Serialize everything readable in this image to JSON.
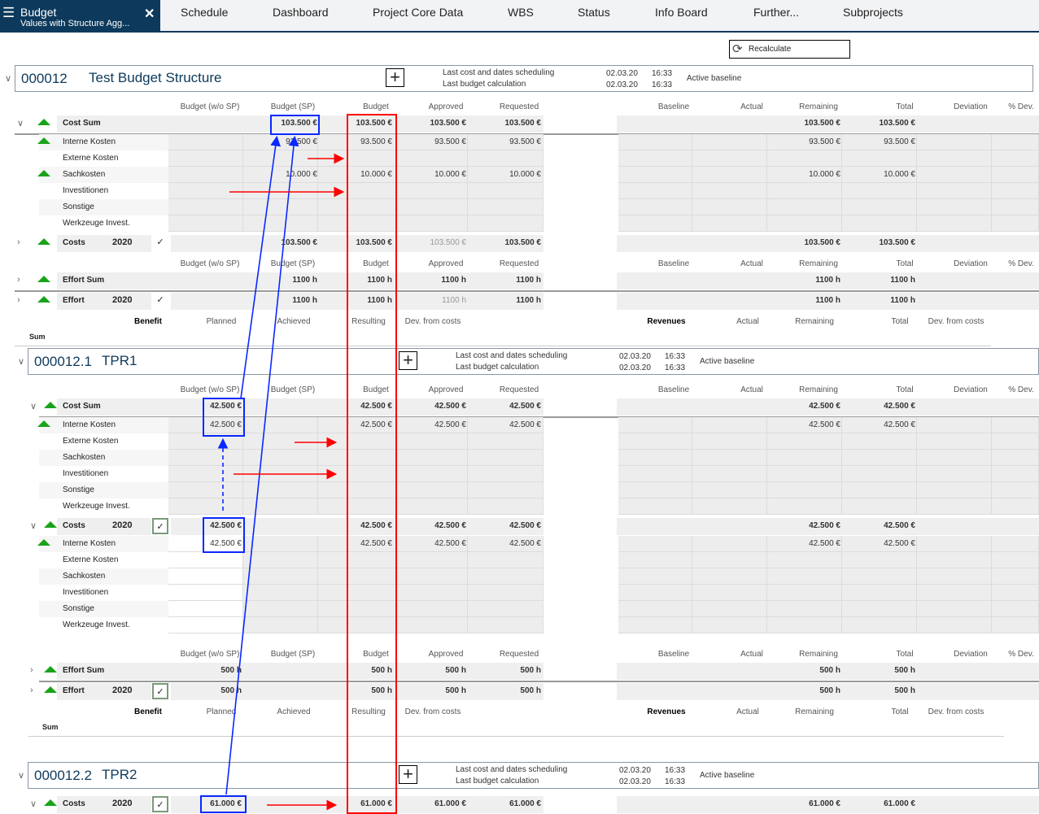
{
  "topbar": {
    "module_title": "Budget",
    "module_subtitle": "Values with Structure Agg...",
    "tabs": [
      "Schedule",
      "Dashboard",
      "Project Core Data",
      "WBS",
      "Status",
      "Info Board",
      "Further...",
      "Subprojects"
    ]
  },
  "toolbar": {
    "recalculate": "Recalculate"
  },
  "labels": {
    "last_cost": "Last cost and dates scheduling",
    "last_budget": "Last budget calculation",
    "active_baseline": "Active baseline",
    "sum": "Sum"
  },
  "columns": {
    "cost": [
      "Budget (w/o SP)",
      "Budget (SP)",
      "Budget",
      "Approved",
      "Requested",
      "Baseline",
      "Actual",
      "Remaining",
      "Total",
      "Deviation",
      "% Dev."
    ],
    "benefit": [
      "Benefit",
      "Planned",
      "Achieved",
      "Resulting",
      "Dev. from costs",
      "Revenues",
      "Actual",
      "Remaining",
      "Total",
      "Dev. from costs"
    ]
  },
  "colors": {
    "accent": "#0d3a5c",
    "status_green": "#19a319",
    "annotation_blue": "#0a28ff",
    "annotation_red": "#ff0000"
  },
  "projects": [
    {
      "id": "000012",
      "name": "Test Budget Structure",
      "cost_date": "02.03.20",
      "cost_time": "16:33",
      "budget_date": "02.03.20",
      "budget_time": "16:33",
      "rows": [
        {
          "type": "header"
        },
        {
          "type": "sum",
          "label": "Cost Sum",
          "v": {
            "s": "103.500 €",
            "b": "103.500 €",
            "a": "103.500 €",
            "r": "103.500 €",
            "rem": "103.500 €",
            "tot": "103.500 €"
          }
        },
        {
          "type": "detail",
          "label": "Interne Kosten",
          "tri": true,
          "v": {
            "s": "93.500 €",
            "b": "93.500 €",
            "a": "93.500 €",
            "r": "93.500 €",
            "rem": "93.500 €",
            "tot": "93.500 €"
          }
        },
        {
          "type": "detail",
          "label": "Externe Kosten",
          "v": {}
        },
        {
          "type": "detail",
          "label": "Sachkosten",
          "tri": true,
          "v": {
            "s": "10.000 €",
            "b": "10.000 €",
            "a": "10.000 €",
            "r": "10.000 €",
            "rem": "10.000 €",
            "tot": "10.000 €"
          }
        },
        {
          "type": "detail",
          "label": "Investitionen",
          "v": {}
        },
        {
          "type": "detail",
          "label": "Sonstige",
          "v": {}
        },
        {
          "type": "detail",
          "label": "Werkzeuge Invest.",
          "v": {}
        },
        {
          "type": "year",
          "label": "Costs",
          "year": "2020",
          "v": {
            "s": "103.500 €",
            "b": "103.500 €",
            "a": "103.500 €",
            "r": "103.500 €",
            "rem": "103.500 €",
            "tot": "103.500 €"
          },
          "muted": [
            "a"
          ]
        },
        {
          "type": "header"
        },
        {
          "type": "sum",
          "label": "Effort Sum",
          "v": {
            "s": "1100 h",
            "b": "1100 h",
            "a": "1100 h",
            "r": "1100 h",
            "rem": "1100 h",
            "tot": "1100 h"
          }
        },
        {
          "type": "year",
          "label": "Effort",
          "year": "2020",
          "v": {
            "s": "1100 h",
            "b": "1100 h",
            "a": "1100 h",
            "r": "1100 h",
            "rem": "1100 h",
            "tot": "1100 h"
          },
          "muted": [
            "a"
          ]
        },
        {
          "type": "benefit"
        },
        {
          "type": "sumlabel"
        }
      ]
    },
    {
      "id": "000012.1",
      "name": "TPR1",
      "cost_date": "02.03.20",
      "cost_time": "16:33",
      "budget_date": "02.03.20",
      "budget_time": "16:33",
      "rows": [
        {
          "type": "header"
        },
        {
          "type": "sum",
          "label": "Cost Sum",
          "v": {
            "w": "42.500 €",
            "b": "42.500 €",
            "a": "42.500 €",
            "r": "42.500 €",
            "rem": "42.500 €",
            "tot": "42.500 €"
          }
        },
        {
          "type": "detail",
          "label": "Interne Kosten",
          "tri": true,
          "v": {
            "w": "42.500 €",
            "b": "42.500 €",
            "a": "42.500 €",
            "r": "42.500 €",
            "rem": "42.500 €",
            "tot": "42.500 €"
          }
        },
        {
          "type": "detail",
          "label": "Externe Kosten",
          "v": {}
        },
        {
          "type": "detail",
          "label": "Sachkosten",
          "v": {}
        },
        {
          "type": "detail",
          "label": "Investitionen",
          "v": {}
        },
        {
          "type": "detail",
          "label": "Sonstige",
          "v": {}
        },
        {
          "type": "detail",
          "label": "Werkzeuge Invest.",
          "v": {}
        },
        {
          "type": "year",
          "label": "Costs",
          "year": "2020",
          "boxed": true,
          "v": {
            "w": "42.500 €",
            "b": "42.500 €",
            "a": "42.500 €",
            "r": "42.500 €",
            "rem": "42.500 €",
            "tot": "42.500 €"
          }
        },
        {
          "type": "detail",
          "label": "Interne Kosten",
          "tri": true,
          "white": true,
          "v": {
            "w": "42.500 €",
            "b": "42.500 €",
            "a": "42.500 €",
            "r": "42.500 €",
            "rem": "42.500 €",
            "tot": "42.500 €"
          }
        },
        {
          "type": "detail",
          "label": "Externe Kosten",
          "white": true,
          "v": {}
        },
        {
          "type": "detail",
          "label": "Sachkosten",
          "white": true,
          "v": {}
        },
        {
          "type": "detail",
          "label": "Investitionen",
          "white": true,
          "v": {}
        },
        {
          "type": "detail",
          "label": "Sonstige",
          "white": true,
          "v": {}
        },
        {
          "type": "detail",
          "label": "Werkzeuge Invest.",
          "white": true,
          "v": {}
        },
        {
          "type": "header"
        },
        {
          "type": "sum",
          "label": "Effort Sum",
          "v": {
            "w": "500 h",
            "b": "500 h",
            "a": "500 h",
            "r": "500 h",
            "rem": "500 h",
            "tot": "500 h"
          }
        },
        {
          "type": "year",
          "label": "Effort",
          "year": "2020",
          "boxed": true,
          "v": {
            "w": "500 h",
            "b": "500 h",
            "a": "500 h",
            "r": "500 h",
            "rem": "500 h",
            "tot": "500 h"
          }
        },
        {
          "type": "benefit"
        },
        {
          "type": "sumlabel"
        }
      ]
    },
    {
      "id": "000012.2",
      "name": "TPR2",
      "cost_date": "02.03.20",
      "cost_time": "16:33",
      "budget_date": "02.03.20",
      "budget_time": "16:33",
      "rows": [
        {
          "type": "year",
          "label": "Costs",
          "year": "2020",
          "boxed": true,
          "v": {
            "w": "61.000 €",
            "b": "61.000 €",
            "a": "61.000 €",
            "r": "61.000 €",
            "rem": "61.000 €",
            "tot": "61.000 €"
          }
        }
      ]
    }
  ]
}
